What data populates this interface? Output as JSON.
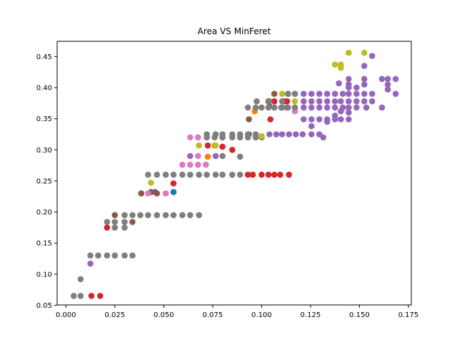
{
  "chart_data": {
    "type": "scatter",
    "title": "Area VS MinFeret",
    "xlabel": "",
    "ylabel": "",
    "xlim": [
      -0.0045,
      0.1765
    ],
    "ylim": [
      0.0505,
      0.4745
    ],
    "x_ticks": [
      "0.000",
      "0.025",
      "0.050",
      "0.075",
      "0.100",
      "0.125",
      "0.150",
      "0.175"
    ],
    "x_tick_values": [
      0.0,
      0.025,
      0.05,
      0.075,
      0.1,
      0.125,
      0.15,
      0.175
    ],
    "y_ticks": [
      "0.05",
      "0.10",
      "0.15",
      "0.20",
      "0.25",
      "0.30",
      "0.35",
      "0.40",
      "0.45"
    ],
    "y_tick_values": [
      0.05,
      0.1,
      0.15,
      0.2,
      0.25,
      0.3,
      0.35,
      0.4,
      0.45
    ],
    "grid": false,
    "legend": "none",
    "series": [
      {
        "color": "#1f77b4",
        "points": [
          [
            0.0455,
            0.232
          ],
          [
            0.055,
            0.232
          ]
        ]
      },
      {
        "color": "#ff7f0e",
        "points": [
          [
            0.0725,
            0.289
          ],
          [
            0.076,
            0.307
          ],
          [
            0.0965,
            0.362
          ]
        ]
      },
      {
        "color": "#2ca02c",
        "points": []
      },
      {
        "color": "#d62728",
        "points": [
          [
            0.013,
            0.065
          ],
          [
            0.0175,
            0.065
          ],
          [
            0.021,
            0.175
          ],
          [
            0.055,
            0.246
          ],
          [
            0.0725,
            0.307
          ],
          [
            0.08,
            0.305
          ],
          [
            0.085,
            0.3
          ],
          [
            0.093,
            0.26
          ],
          [
            0.0955,
            0.26
          ],
          [
            0.1,
            0.26
          ],
          [
            0.1035,
            0.26
          ],
          [
            0.1065,
            0.26
          ],
          [
            0.1095,
            0.26
          ],
          [
            0.114,
            0.26
          ],
          [
            0.1045,
            0.349
          ],
          [
            0.1065,
            0.378
          ],
          [
            0.1115,
            0.378
          ],
          [
            0.113,
            0.378
          ]
        ]
      },
      {
        "color": "#9467bd",
        "points": [
          [
            0.0125,
            0.117
          ],
          [
            0.0435,
            0.232
          ],
          [
            0.0635,
            0.29
          ],
          [
            0.0765,
            0.29
          ],
          [
            0.08,
            0.32
          ],
          [
            0.104,
            0.325
          ],
          [
            0.1075,
            0.325
          ],
          [
            0.1105,
            0.325
          ],
          [
            0.114,
            0.325
          ],
          [
            0.1175,
            0.325
          ],
          [
            0.121,
            0.325
          ],
          [
            0.1255,
            0.325
          ],
          [
            0.1295,
            0.325
          ],
          [
            0.1315,
            0.32
          ],
          [
            0.1065,
            0.368
          ],
          [
            0.1105,
            0.368
          ],
          [
            0.1135,
            0.368
          ],
          [
            0.117,
            0.368
          ],
          [
            0.1215,
            0.368
          ],
          [
            0.1255,
            0.368
          ],
          [
            0.1295,
            0.368
          ],
          [
            0.1335,
            0.368
          ],
          [
            0.1375,
            0.368
          ],
          [
            0.1415,
            0.368
          ],
          [
            0.1445,
            0.368
          ],
          [
            0.1485,
            0.368
          ],
          [
            0.1535,
            0.368
          ],
          [
            0.1615,
            0.368
          ],
          [
            0.1135,
            0.39
          ],
          [
            0.117,
            0.39
          ],
          [
            0.1215,
            0.39
          ],
          [
            0.1255,
            0.39
          ],
          [
            0.1295,
            0.39
          ],
          [
            0.1335,
            0.39
          ],
          [
            0.1375,
            0.39
          ],
          [
            0.1415,
            0.39
          ],
          [
            0.1445,
            0.39
          ],
          [
            0.1485,
            0.39
          ],
          [
            0.1525,
            0.39
          ],
          [
            0.1565,
            0.39
          ],
          [
            0.1215,
            0.378
          ],
          [
            0.1255,
            0.378
          ],
          [
            0.1295,
            0.378
          ],
          [
            0.1335,
            0.378
          ],
          [
            0.1375,
            0.378
          ],
          [
            0.1405,
            0.378
          ],
          [
            0.1445,
            0.378
          ],
          [
            0.1485,
            0.378
          ],
          [
            0.1525,
            0.378
          ],
          [
            0.1565,
            0.378
          ],
          [
            0.1215,
            0.349
          ],
          [
            0.1255,
            0.349
          ],
          [
            0.1295,
            0.349
          ],
          [
            0.1335,
            0.349
          ],
          [
            0.1375,
            0.349
          ],
          [
            0.1405,
            0.349
          ],
          [
            0.1445,
            0.349
          ],
          [
            0.1255,
            0.338
          ],
          [
            0.1335,
            0.345
          ],
          [
            0.1375,
            0.355
          ],
          [
            0.1445,
            0.36
          ],
          [
            0.1405,
            0.362
          ],
          [
            0.1485,
            0.4
          ],
          [
            0.1445,
            0.405
          ],
          [
            0.1445,
            0.414
          ],
          [
            0.1395,
            0.407
          ],
          [
            0.1525,
            0.405
          ],
          [
            0.1525,
            0.414
          ],
          [
            0.1615,
            0.414
          ],
          [
            0.1645,
            0.414
          ],
          [
            0.1685,
            0.414
          ],
          [
            0.1645,
            0.405
          ],
          [
            0.1645,
            0.397
          ],
          [
            0.1685,
            0.39
          ],
          [
            0.1525,
            0.435
          ],
          [
            0.1565,
            0.451
          ],
          [
            0.1445,
            0.4
          ]
        ]
      },
      {
        "color": "#8c564b",
        "points": [
          [
            0.025,
            0.195
          ],
          [
            0.034,
            0.184
          ],
          [
            0.0385,
            0.23
          ],
          [
            0.0435,
            0.232
          ],
          [
            0.0465,
            0.23
          ],
          [
            0.0935,
            0.349
          ],
          [
            0.0935,
            0.325
          ],
          [
            0.1035,
            0.378
          ],
          [
            0.1065,
            0.39
          ],
          [
            0.104,
            0.37
          ]
        ]
      },
      {
        "color": "#e377c2",
        "points": [
          [
            0.042,
            0.23
          ],
          [
            0.051,
            0.23
          ],
          [
            0.0595,
            0.276
          ],
          [
            0.0635,
            0.276
          ],
          [
            0.0675,
            0.276
          ],
          [
            0.0715,
            0.276
          ],
          [
            0.0635,
            0.32
          ],
          [
            0.0675,
            0.32
          ],
          [
            0.0765,
            0.325
          ],
          [
            0.0675,
            0.29
          ],
          [
            0.117,
            0.362
          ]
        ]
      },
      {
        "color": "#7f7f7f",
        "points": [
          [
            0.004,
            0.065
          ],
          [
            0.0075,
            0.065
          ],
          [
            0.0075,
            0.092
          ],
          [
            0.0125,
            0.13
          ],
          [
            0.0165,
            0.13
          ],
          [
            0.021,
            0.13
          ],
          [
            0.025,
            0.13
          ],
          [
            0.03,
            0.13
          ],
          [
            0.034,
            0.13
          ],
          [
            0.021,
            0.184
          ],
          [
            0.025,
            0.175
          ],
          [
            0.025,
            0.184
          ],
          [
            0.03,
            0.175
          ],
          [
            0.03,
            0.184
          ],
          [
            0.03,
            0.195
          ],
          [
            0.034,
            0.195
          ],
          [
            0.038,
            0.195
          ],
          [
            0.042,
            0.195
          ],
          [
            0.0465,
            0.195
          ],
          [
            0.051,
            0.195
          ],
          [
            0.055,
            0.195
          ],
          [
            0.0595,
            0.195
          ],
          [
            0.0635,
            0.195
          ],
          [
            0.068,
            0.195
          ],
          [
            0.042,
            0.26
          ],
          [
            0.0465,
            0.26
          ],
          [
            0.051,
            0.26
          ],
          [
            0.055,
            0.26
          ],
          [
            0.0595,
            0.26
          ],
          [
            0.0635,
            0.26
          ],
          [
            0.068,
            0.26
          ],
          [
            0.072,
            0.26
          ],
          [
            0.0765,
            0.26
          ],
          [
            0.08,
            0.26
          ],
          [
            0.085,
            0.26
          ],
          [
            0.089,
            0.26
          ],
          [
            0.072,
            0.32
          ],
          [
            0.076,
            0.32
          ],
          [
            0.08,
            0.32
          ],
          [
            0.085,
            0.32
          ],
          [
            0.089,
            0.32
          ],
          [
            0.093,
            0.32
          ],
          [
            0.097,
            0.32
          ],
          [
            0.1,
            0.32
          ],
          [
            0.072,
            0.325
          ],
          [
            0.0765,
            0.325
          ],
          [
            0.08,
            0.325
          ],
          [
            0.085,
            0.325
          ],
          [
            0.089,
            0.325
          ],
          [
            0.093,
            0.325
          ],
          [
            0.097,
            0.325
          ],
          [
            0.08,
            0.29
          ],
          [
            0.089,
            0.289
          ],
          [
            0.093,
            0.368
          ],
          [
            0.097,
            0.368
          ],
          [
            0.0975,
            0.378
          ],
          [
            0.1,
            0.368
          ],
          [
            0.1035,
            0.368
          ],
          [
            0.104,
            0.378
          ],
          [
            0.1065,
            0.368
          ],
          [
            0.11,
            0.368
          ],
          [
            0.113,
            0.368
          ],
          [
            0.117,
            0.368
          ],
          [
            0.1105,
            0.378
          ],
          [
            0.1135,
            0.39
          ],
          [
            0.117,
            0.39
          ]
        ]
      },
      {
        "color": "#bcbd22",
        "points": [
          [
            0.0435,
            0.247
          ],
          [
            0.068,
            0.307
          ],
          [
            0.0765,
            0.307
          ],
          [
            0.1,
            0.322
          ],
          [
            0.1105,
            0.39
          ],
          [
            0.117,
            0.378
          ],
          [
            0.1375,
            0.437
          ],
          [
            0.1405,
            0.432
          ],
          [
            0.1405,
            0.437
          ],
          [
            0.1445,
            0.456
          ],
          [
            0.1525,
            0.456
          ]
        ]
      },
      {
        "color": "#17becf",
        "points": []
      }
    ]
  }
}
